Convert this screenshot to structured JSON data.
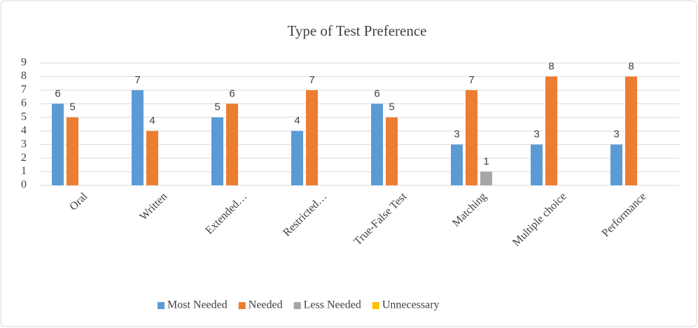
{
  "chart_data": {
    "type": "bar",
    "title": "Type of Test Preference",
    "categories": [
      "Oral",
      "Written",
      "Extended…",
      "Restricted…",
      "True-False Test",
      "Matching",
      "Multiple choice",
      "Performance"
    ],
    "series": [
      {
        "name": "Most Needed",
        "color": "#5b9bd5",
        "values": [
          6,
          7,
          5,
          4,
          6,
          3,
          3,
          3
        ]
      },
      {
        "name": "Needed",
        "color": "#ed7d31",
        "values": [
          5,
          4,
          6,
          7,
          5,
          7,
          8,
          8
        ]
      },
      {
        "name": "Less Needed",
        "color": "#a5a5a5",
        "values": [
          null,
          null,
          null,
          null,
          null,
          1,
          null,
          null
        ]
      },
      {
        "name": "Unnecessary",
        "color": "#ffc000",
        "values": [
          null,
          null,
          null,
          null,
          null,
          null,
          null,
          null
        ]
      }
    ],
    "ylim": [
      0,
      9
    ],
    "yticks": [
      0,
      1,
      2,
      3,
      4,
      5,
      6,
      7,
      8,
      9
    ],
    "grid": true,
    "legend": "bottom"
  }
}
